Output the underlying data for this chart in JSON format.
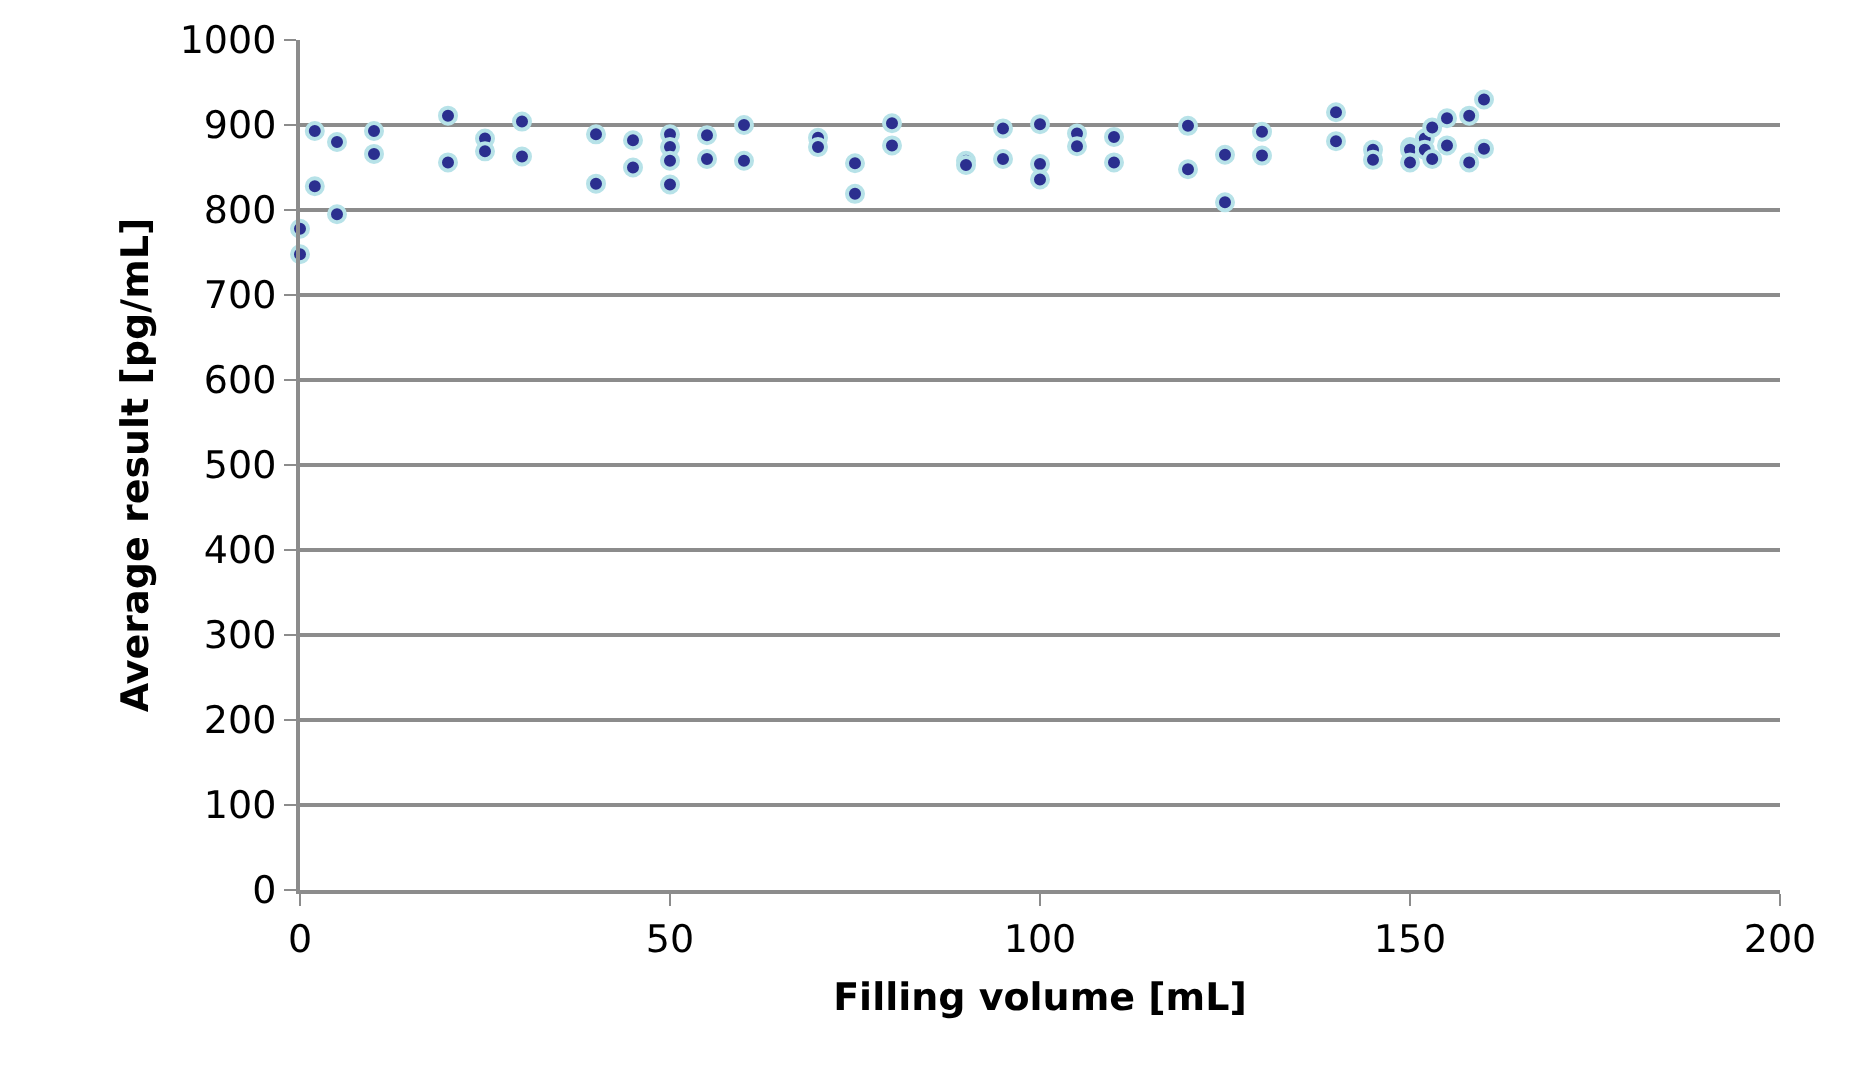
{
  "chart_data": {
    "type": "scatter",
    "xlabel": "Filling volume [mL]",
    "ylabel": "Average result [pg/mL]",
    "x": [
      0,
      0,
      2,
      2,
      5,
      5,
      10,
      10,
      20,
      20,
      25,
      25,
      30,
      30,
      40,
      40,
      45,
      45,
      50,
      50,
      50,
      50,
      55,
      55,
      60,
      60,
      70,
      70,
      75,
      75,
      80,
      80,
      90,
      90,
      95,
      95,
      100,
      100,
      100,
      105,
      105,
      110,
      110,
      120,
      120,
      125,
      125,
      130,
      130,
      140,
      140,
      145,
      145,
      150,
      150,
      150,
      152,
      152,
      153,
      153,
      155,
      155,
      158,
      158,
      160,
      160
    ],
    "values": [
      778,
      748,
      893,
      828,
      880,
      795,
      893,
      866,
      911,
      856,
      884,
      869,
      904,
      863,
      889,
      831,
      882,
      850,
      889,
      874,
      858,
      830,
      888,
      860,
      900,
      858,
      885,
      874,
      855,
      819,
      902,
      876,
      858,
      853,
      896,
      860,
      901,
      854,
      836,
      890,
      875,
      886,
      856,
      899,
      848,
      865,
      809,
      892,
      864,
      915,
      881,
      871,
      859,
      874,
      871,
      856,
      884,
      871,
      897,
      860,
      908,
      876,
      911,
      856,
      930,
      872
    ],
    "color": "#2b2f8f",
    "marker": "circle",
    "xlim": [
      0,
      200
    ],
    "xticks": [
      0,
      50,
      100,
      150,
      200
    ],
    "ylim": [
      0,
      1000
    ],
    "yticks": [
      0,
      100,
      200,
      300,
      400,
      500,
      600,
      700,
      800,
      900,
      1000
    ],
    "grid": "y"
  }
}
